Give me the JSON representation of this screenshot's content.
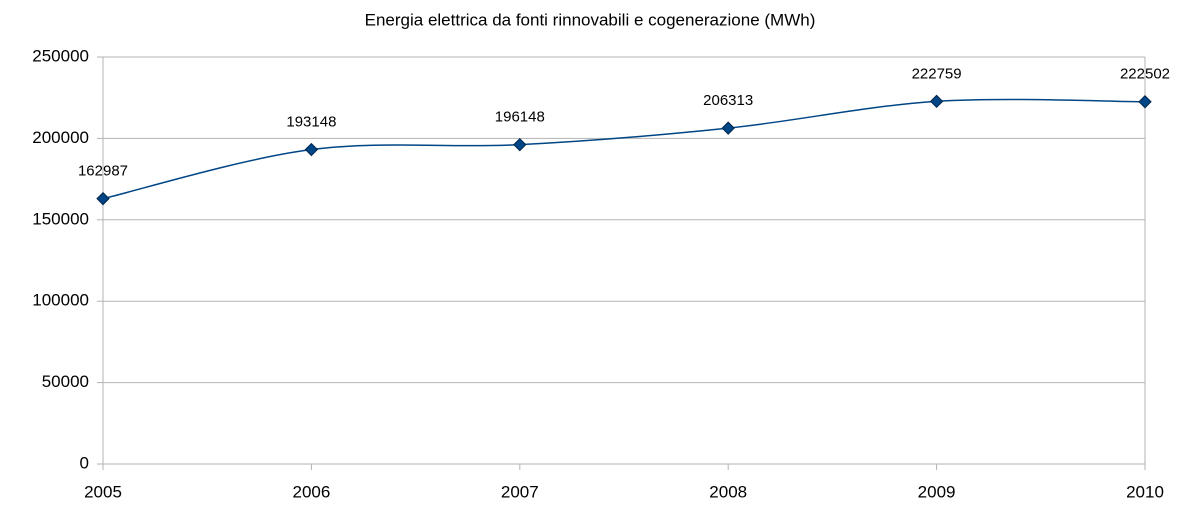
{
  "chart_data": {
    "type": "line",
    "title": "Energia elettrica da fonti rinnovabili e cogenerazione (MWh)",
    "x": [
      2005,
      2006,
      2007,
      2008,
      2009,
      2010
    ],
    "series": [
      {
        "color": "#004586",
        "values": [
          162987,
          193148,
          196148,
          206313,
          222759,
          222502
        ]
      }
    ],
    "xlim": [
      2005,
      2010
    ],
    "xticks": [
      2005,
      2006,
      2007,
      2008,
      2009,
      2010
    ],
    "ylim": [
      0,
      250000
    ],
    "yticks": [
      0,
      50000,
      100000,
      150000,
      200000,
      250000
    ],
    "grid": true,
    "smooth": true,
    "data_labels": true
  }
}
